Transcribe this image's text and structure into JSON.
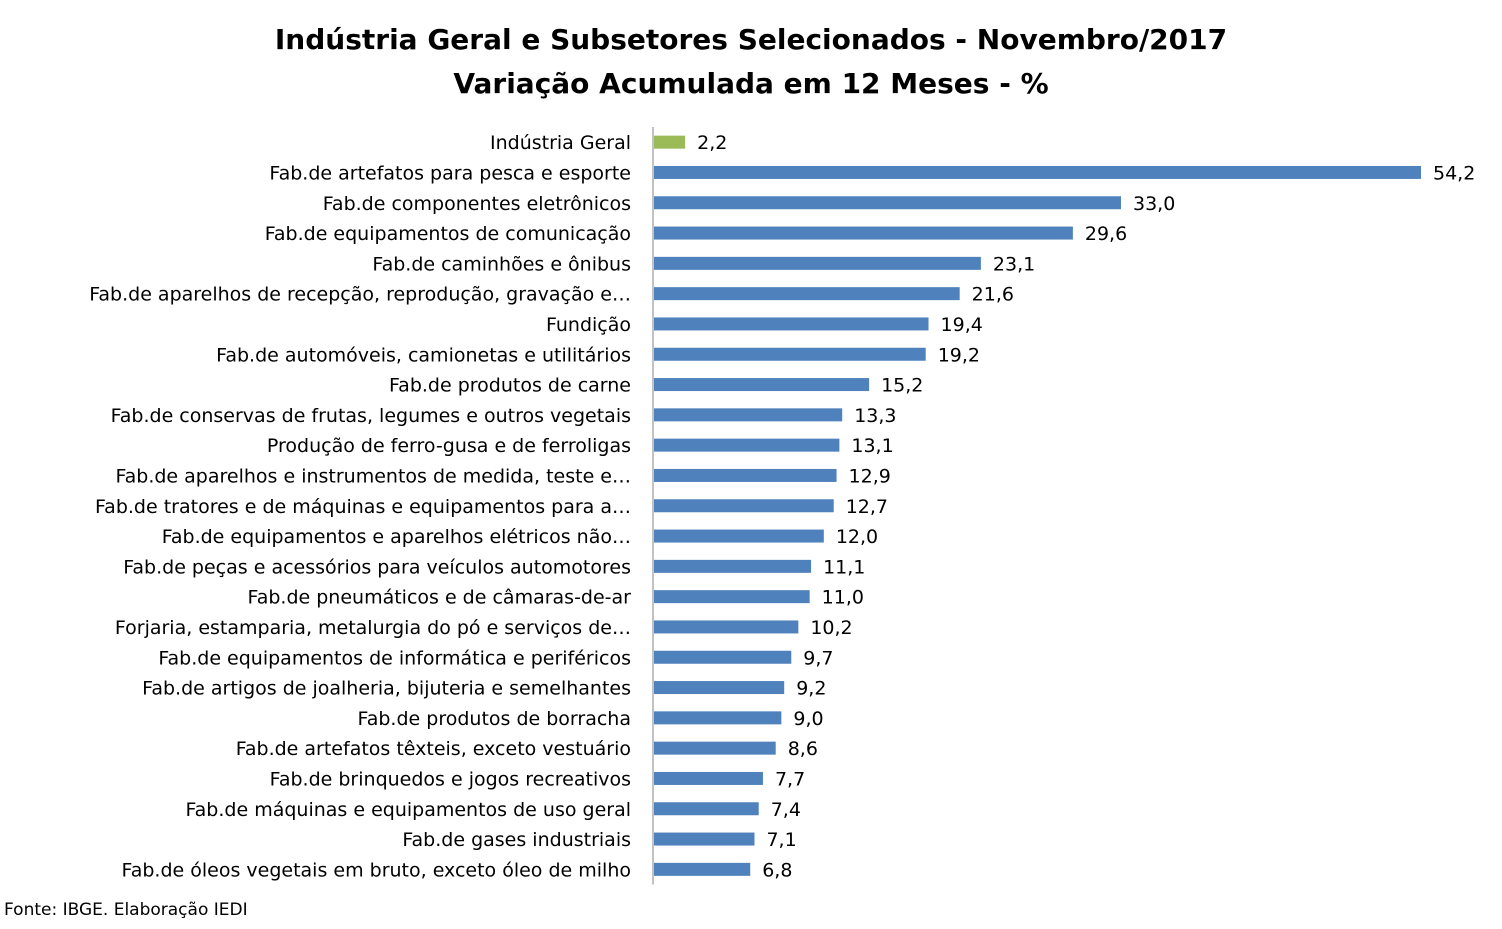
{
  "chart_data": {
    "type": "bar",
    "orientation": "horizontal",
    "title": "Indústria Geral e Subsetores Selecionados - Novembro/2017",
    "subtitle": "Variação Acumulada em 12 Meses - %",
    "categories": [
      "Indústria Geral",
      "Fab.de artefatos para pesca e esporte",
      "Fab.de componentes eletrônicos",
      "Fab.de equipamentos de comunicação",
      "Fab.de caminhões e ônibus",
      "Fab.de aparelhos de recepção, reprodução, gravação e…",
      "Fundição",
      "Fab.de automóveis, camionetas e utilitários",
      "Fab.de produtos de carne",
      "Fab.de conservas de frutas, legumes e outros vegetais",
      "Produção de ferro-gusa e de ferroligas",
      "Fab.de aparelhos e instrumentos de medida, teste e…",
      "Fab.de tratores e de máquinas e equipamentos para a…",
      "Fab.de equipamentos e aparelhos elétricos não…",
      "Fab.de peças e acessórios para veículos automotores",
      "Fab.de pneumáticos e de câmaras-de-ar",
      "Forjaria, estamparia, metalurgia do pó e serviços de…",
      "Fab.de equipamentos de informática e periféricos",
      "Fab.de artigos de joalheria, bijuteria e semelhantes",
      "Fab.de produtos de borracha",
      "Fab.de artefatos têxteis, exceto vestuário",
      "Fab.de brinquedos e jogos recreativos",
      "Fab.de máquinas e equipamentos de uso geral",
      "Fab.de gases industriais",
      "Fab.de óleos vegetais em bruto, exceto óleo de milho"
    ],
    "values": [
      2.2,
      54.2,
      33.0,
      29.6,
      23.1,
      21.6,
      19.4,
      19.2,
      15.2,
      13.3,
      13.1,
      12.9,
      12.7,
      12.0,
      11.1,
      11.0,
      10.2,
      9.7,
      9.2,
      9.0,
      8.6,
      7.7,
      7.4,
      7.1,
      6.8
    ],
    "value_labels": [
      "2,2",
      "54,2",
      "33,0",
      "29,6",
      "23,1",
      "21,6",
      "19,4",
      "19,2",
      "15,2",
      "13,3",
      "13,1",
      "12,9",
      "12,7",
      "12,0",
      "11,1",
      "11,0",
      "10,2",
      "9,7",
      "9,2",
      "9,0",
      "8,6",
      "7,7",
      "7,4",
      "7,1",
      "6,8"
    ],
    "highlight_index": 0,
    "colors": {
      "highlight": "#9BBB59",
      "bar": "#4F81BD",
      "axis": "#868686"
    },
    "grid": false,
    "legend": "none"
  },
  "source": "Fonte: IBGE. Elaboração IEDI"
}
